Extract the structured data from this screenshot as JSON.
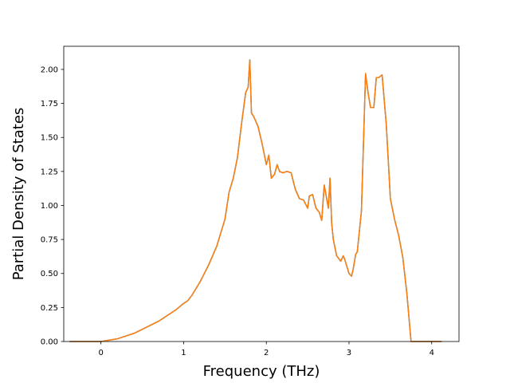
{
  "chart_data": {
    "type": "line",
    "title": "",
    "xlabel": "Frequency (THz)",
    "ylabel": "Partial Density of States",
    "xlim": [
      -0.45,
      4.33
    ],
    "ylim": [
      0,
      2.17
    ],
    "xticks": [
      0,
      1,
      2,
      3,
      4
    ],
    "xtick_labels": [
      "0",
      "1",
      "2",
      "3",
      "4"
    ],
    "yticks": [
      0,
      0.25,
      0.5,
      0.75,
      1.0,
      1.25,
      1.5,
      1.75,
      2.0
    ],
    "ytick_labels": [
      "0.00",
      "0.25",
      "0.50",
      "0.75",
      "1.00",
      "1.25",
      "1.50",
      "1.75",
      "2.00"
    ],
    "grid": false,
    "legend": "none",
    "series": [
      {
        "color": "#1f77b4",
        "x": [
          -0.38,
          0.0,
          0.1,
          0.2,
          0.3,
          0.4,
          0.5,
          0.6,
          0.7,
          0.8,
          0.9,
          1.0,
          1.05,
          1.1,
          1.2,
          1.3,
          1.4,
          1.45,
          1.5,
          1.55,
          1.6,
          1.65,
          1.7,
          1.75,
          1.78,
          1.8,
          1.82,
          1.85,
          1.9,
          1.95,
          2.0,
          2.03,
          2.06,
          2.1,
          2.13,
          2.16,
          2.2,
          2.25,
          2.3,
          2.35,
          2.4,
          2.45,
          2.5,
          2.52,
          2.56,
          2.6,
          2.64,
          2.67,
          2.7,
          2.73,
          2.75,
          2.77,
          2.79,
          2.81,
          2.85,
          2.9,
          2.93,
          2.95,
          3.0,
          3.03,
          3.05,
          3.08,
          3.1,
          3.15,
          3.2,
          3.23,
          3.26,
          3.3,
          3.33,
          3.36,
          3.4,
          3.45,
          3.5,
          3.55,
          3.6,
          3.65,
          3.7,
          3.75,
          4.12
        ],
        "y": [
          0.0,
          0.0,
          0.01,
          0.02,
          0.04,
          0.06,
          0.09,
          0.12,
          0.15,
          0.19,
          0.23,
          0.28,
          0.3,
          0.34,
          0.44,
          0.56,
          0.7,
          0.8,
          0.9,
          1.1,
          1.2,
          1.35,
          1.6,
          1.83,
          1.87,
          2.07,
          1.68,
          1.65,
          1.58,
          1.45,
          1.3,
          1.37,
          1.2,
          1.23,
          1.3,
          1.25,
          1.24,
          1.25,
          1.24,
          1.12,
          1.05,
          1.04,
          0.98,
          1.07,
          1.08,
          0.98,
          0.95,
          0.89,
          1.15,
          1.05,
          0.98,
          1.2,
          0.87,
          0.75,
          0.63,
          0.59,
          0.63,
          0.6,
          0.5,
          0.48,
          0.53,
          0.64,
          0.66,
          0.96,
          1.97,
          1.83,
          1.72,
          1.72,
          1.94,
          1.94,
          1.96,
          1.6,
          1.05,
          0.9,
          0.78,
          0.62,
          0.35,
          0.0,
          0.0
        ]
      },
      {
        "color": "#ff7f0e",
        "x": [
          -0.38,
          0.0,
          0.1,
          0.2,
          0.3,
          0.4,
          0.5,
          0.6,
          0.7,
          0.8,
          0.9,
          1.0,
          1.05,
          1.1,
          1.2,
          1.3,
          1.4,
          1.45,
          1.5,
          1.55,
          1.6,
          1.65,
          1.7,
          1.75,
          1.78,
          1.8,
          1.82,
          1.85,
          1.9,
          1.95,
          2.0,
          2.03,
          2.06,
          2.1,
          2.13,
          2.16,
          2.2,
          2.25,
          2.3,
          2.35,
          2.4,
          2.45,
          2.5,
          2.52,
          2.56,
          2.6,
          2.64,
          2.67,
          2.7,
          2.73,
          2.75,
          2.77,
          2.79,
          2.81,
          2.85,
          2.9,
          2.93,
          2.95,
          3.0,
          3.03,
          3.05,
          3.08,
          3.1,
          3.15,
          3.2,
          3.23,
          3.26,
          3.3,
          3.33,
          3.36,
          3.4,
          3.45,
          3.5,
          3.55,
          3.6,
          3.65,
          3.7,
          3.75,
          4.12
        ],
        "y": [
          0.0,
          0.0,
          0.01,
          0.02,
          0.04,
          0.06,
          0.09,
          0.12,
          0.15,
          0.19,
          0.23,
          0.28,
          0.3,
          0.34,
          0.44,
          0.56,
          0.7,
          0.8,
          0.9,
          1.1,
          1.2,
          1.35,
          1.6,
          1.83,
          1.87,
          2.07,
          1.68,
          1.65,
          1.58,
          1.45,
          1.3,
          1.37,
          1.2,
          1.23,
          1.3,
          1.25,
          1.24,
          1.25,
          1.24,
          1.12,
          1.05,
          1.04,
          0.98,
          1.07,
          1.08,
          0.98,
          0.95,
          0.89,
          1.15,
          1.05,
          0.98,
          1.2,
          0.87,
          0.75,
          0.63,
          0.59,
          0.63,
          0.6,
          0.5,
          0.48,
          0.53,
          0.64,
          0.66,
          0.96,
          1.97,
          1.83,
          1.72,
          1.72,
          1.94,
          1.94,
          1.96,
          1.6,
          1.05,
          0.9,
          0.78,
          0.62,
          0.35,
          0.0,
          0.0
        ]
      }
    ]
  }
}
